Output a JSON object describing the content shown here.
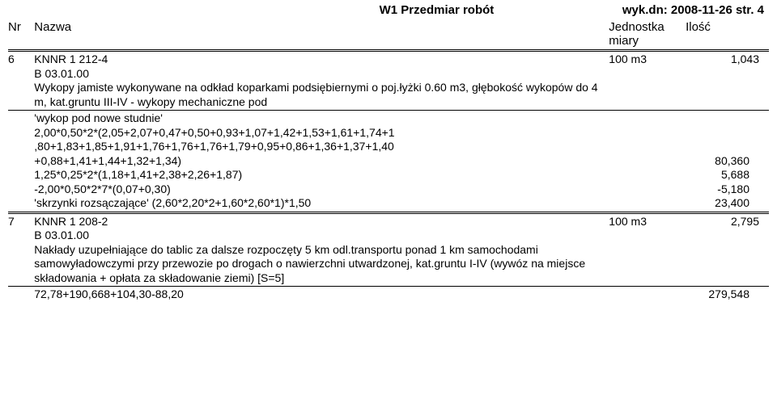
{
  "header": {
    "title_center": "W1 Przedmiar robót",
    "title_right": "wyk.dn: 2008-11-26  str.  4"
  },
  "columns": {
    "nr": "Nr",
    "nazwa": "Nazwa",
    "jedn": "Jednostka miary",
    "ilosc": "Ilość"
  },
  "rows": [
    {
      "nr": "6",
      "code1": "KNNR 1 212-4",
      "code2": "B 03.01.00",
      "desc": "Wykopy jamiste wykonywane na odkład koparkami podsiębiernymi o poj.łyżki 0.60 m3, głębokość wykopów do 4 m, kat.gruntu III-IV - wykopy mechaniczne pod",
      "unit": "100 m3",
      "qty": "1,043",
      "calc": [
        {
          "label": "'wykop pod nowe studnie'",
          "value": ""
        },
        {
          "label": "2,00*0,50*2*(2,05+2,07+0,47+0,50+0,93+1,07+1,42+1,53+1,61+1,74+1",
          "value": ""
        },
        {
          "label": ",80+1,83+1,85+1,91+1,76+1,76+1,76+1,79+0,95+0,86+1,36+1,37+1,40",
          "value": ""
        },
        {
          "label": "+0,88+1,41+1,44+1,32+1,34)",
          "value": "80,360"
        },
        {
          "label": "1,25*0,25*2*(1,18+1,41+2,38+2,26+1,87)",
          "value": "5,688"
        },
        {
          "label": "-2,00*0,50*2*7*(0,07+0,30)",
          "value": "-5,180"
        },
        {
          "label": "'skrzynki rozsączające'              (2,60*2,20*2+1,60*2,60*1)*1,50",
          "value": "23,400"
        }
      ]
    },
    {
      "nr": "7",
      "code1": "KNNR 1 208-2",
      "code2": "B 03.01.00",
      "desc": "Nakłady uzupełniające do tablic za dalsze rozpoczęty 5 km odl.transportu ponad 1 km samochodami samowyładowczymi przy przewozie po drogach o nawierzchni utwardzonej, kat.gruntu I-IV (wywóz na miejsce składowania + opłata za składowanie ziemi) [S=5]",
      "unit": "100 m3",
      "qty": "2,795",
      "calc": [
        {
          "label": "72,78+190,668+104,30-88,20",
          "value": "279,548"
        }
      ]
    }
  ]
}
